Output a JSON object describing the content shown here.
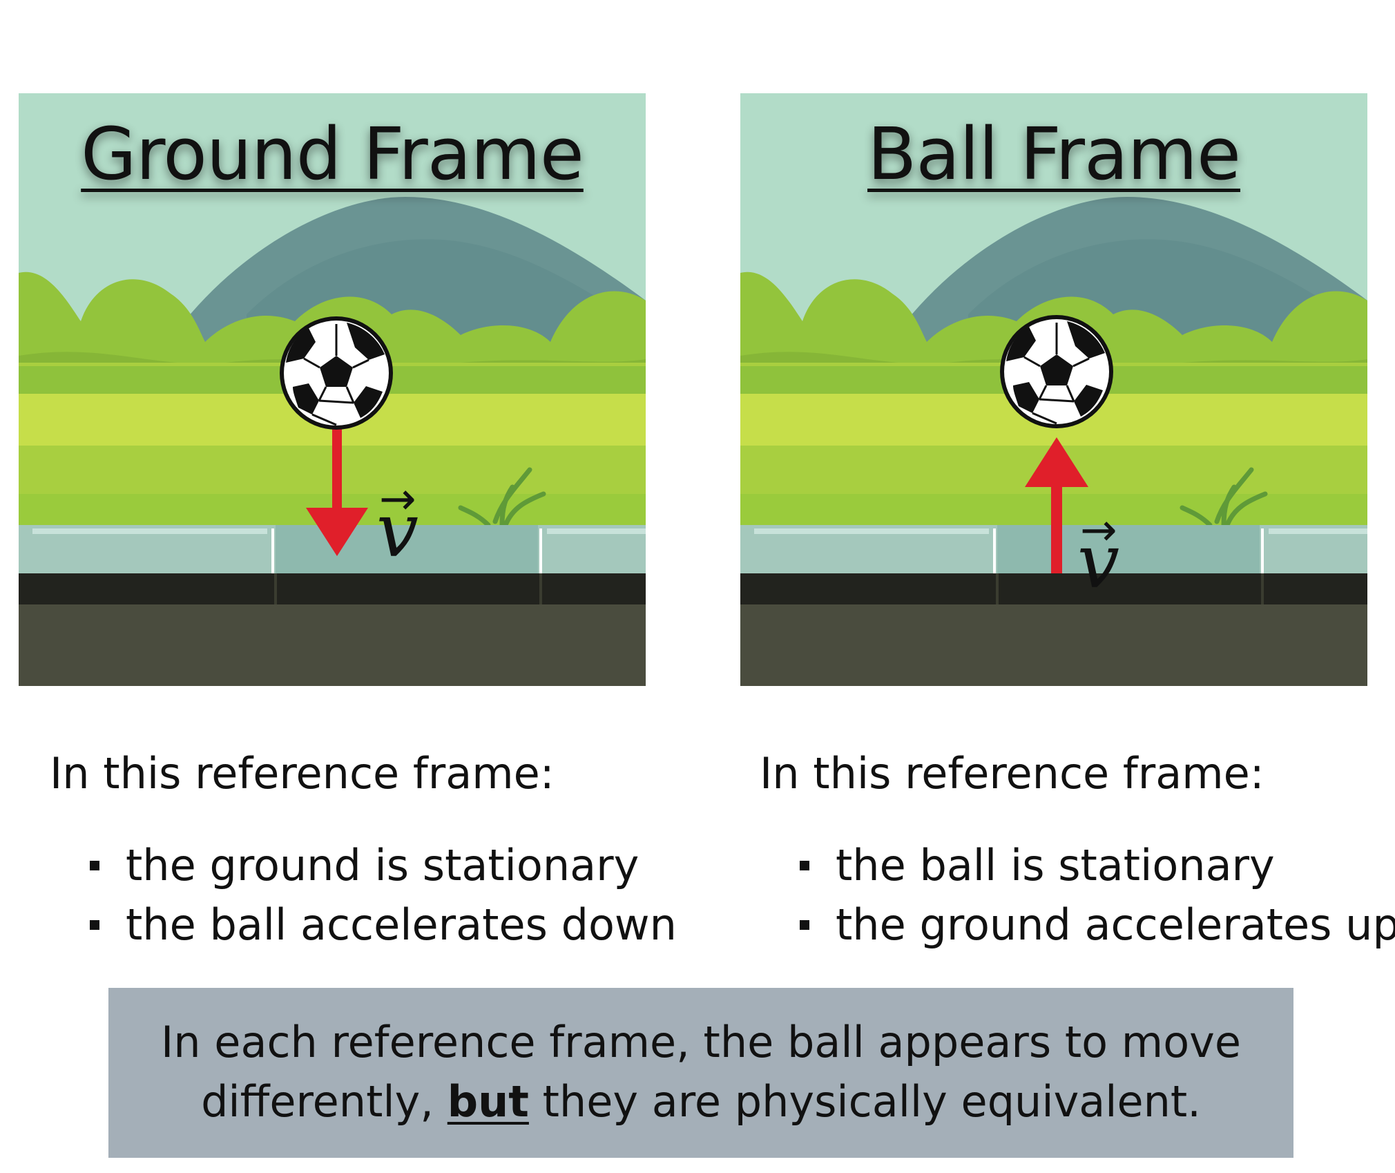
{
  "frames": [
    {
      "title": "Ground Frame",
      "velocity_symbol": "v",
      "velocity_direction": "down",
      "caption_heading": "In this reference frame:",
      "bullets": [
        "the ground is stationary",
        "the ball accelerates down"
      ]
    },
    {
      "title": "Ball Frame",
      "velocity_symbol": "v",
      "velocity_direction": "up",
      "caption_heading": "In this reference frame:",
      "bullets": [
        "the ball is stationary",
        "the ground accelerates up"
      ]
    }
  ],
  "conclusion": {
    "line1": "In each reference frame, the ball appears to move",
    "line2_before": "differently,",
    "line2_emphasis": "but",
    "line2_after": "they are physically equivalent."
  },
  "colors": {
    "sky": "#b2dcc8",
    "mountain": "#6a9493",
    "bushes": "#93c43c",
    "field": "#b8d848",
    "tiles": "#a4c8bc",
    "ground_dark": "#22231e",
    "ground": "#4a4c3e",
    "arrow": "#e01f2a",
    "conclusion_box": "#a4afb8"
  }
}
